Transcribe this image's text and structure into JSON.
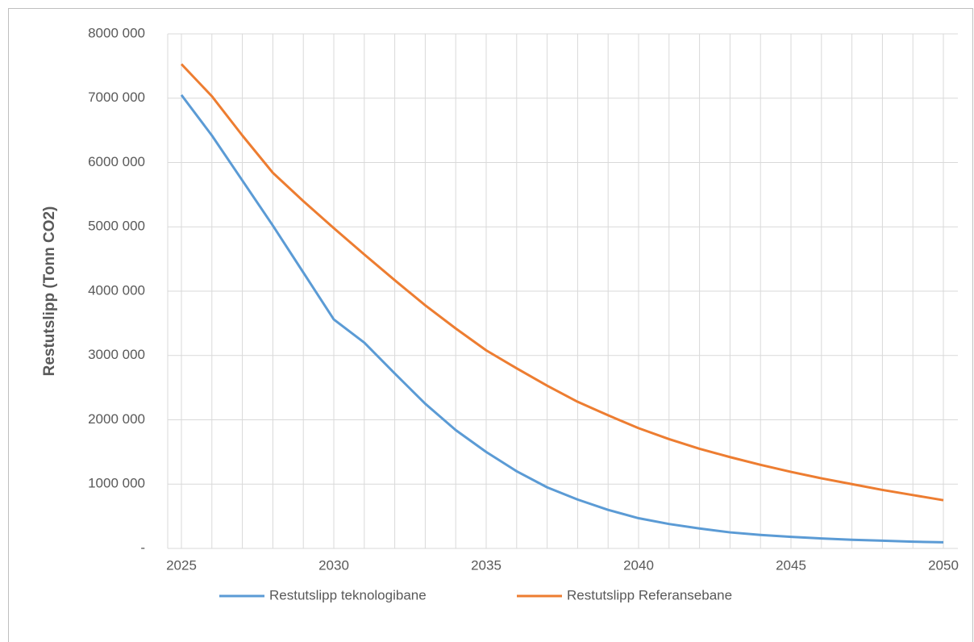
{
  "chart_data": {
    "type": "line",
    "y_label": "Restutslipp (Tonn CO2)",
    "x": [
      2025,
      2026,
      2027,
      2028,
      2029,
      2030,
      2031,
      2032,
      2033,
      2034,
      2035,
      2036,
      2037,
      2038,
      2039,
      2040,
      2041,
      2042,
      2043,
      2044,
      2045,
      2046,
      2047,
      2048,
      2049,
      2050
    ],
    "series": [
      {
        "name": "Restutslipp teknologibane",
        "color": "#5b9bd5",
        "values": [
          7050000,
          6420000,
          5720000,
          5020000,
          4290000,
          3560000,
          3200000,
          2720000,
          2250000,
          1840000,
          1500000,
          1200000,
          950000,
          760000,
          600000,
          470000,
          380000,
          310000,
          250000,
          210000,
          180000,
          155000,
          135000,
          120000,
          105000,
          95000
        ]
      },
      {
        "name": "Restutslipp Referansebane",
        "color": "#ed7d31",
        "values": [
          7530000,
          7030000,
          6420000,
          5840000,
          5400000,
          4980000,
          4570000,
          4170000,
          3780000,
          3420000,
          3080000,
          2800000,
          2530000,
          2280000,
          2070000,
          1870000,
          1700000,
          1550000,
          1420000,
          1300000,
          1190000,
          1090000,
          1000000,
          910000,
          830000,
          750000
        ]
      }
    ],
    "xlim": [
      2025,
      2050
    ],
    "xticks": [
      2025,
      2030,
      2035,
      2040,
      2045,
      2050
    ],
    "ylim": [
      0,
      8000000
    ],
    "yticks": [
      {
        "value": 0,
        "label": "-"
      },
      {
        "value": 1000000,
        "label": "1000 000"
      },
      {
        "value": 2000000,
        "label": "2000 000"
      },
      {
        "value": 3000000,
        "label": "3000 000"
      },
      {
        "value": 4000000,
        "label": "4000 000"
      },
      {
        "value": 5000000,
        "label": "5000 000"
      },
      {
        "value": 6000000,
        "label": "6000 000"
      },
      {
        "value": 7000000,
        "label": "7000 000"
      },
      {
        "value": 8000000,
        "label": "8000 000"
      }
    ],
    "grid": true,
    "legend": "bottom"
  }
}
